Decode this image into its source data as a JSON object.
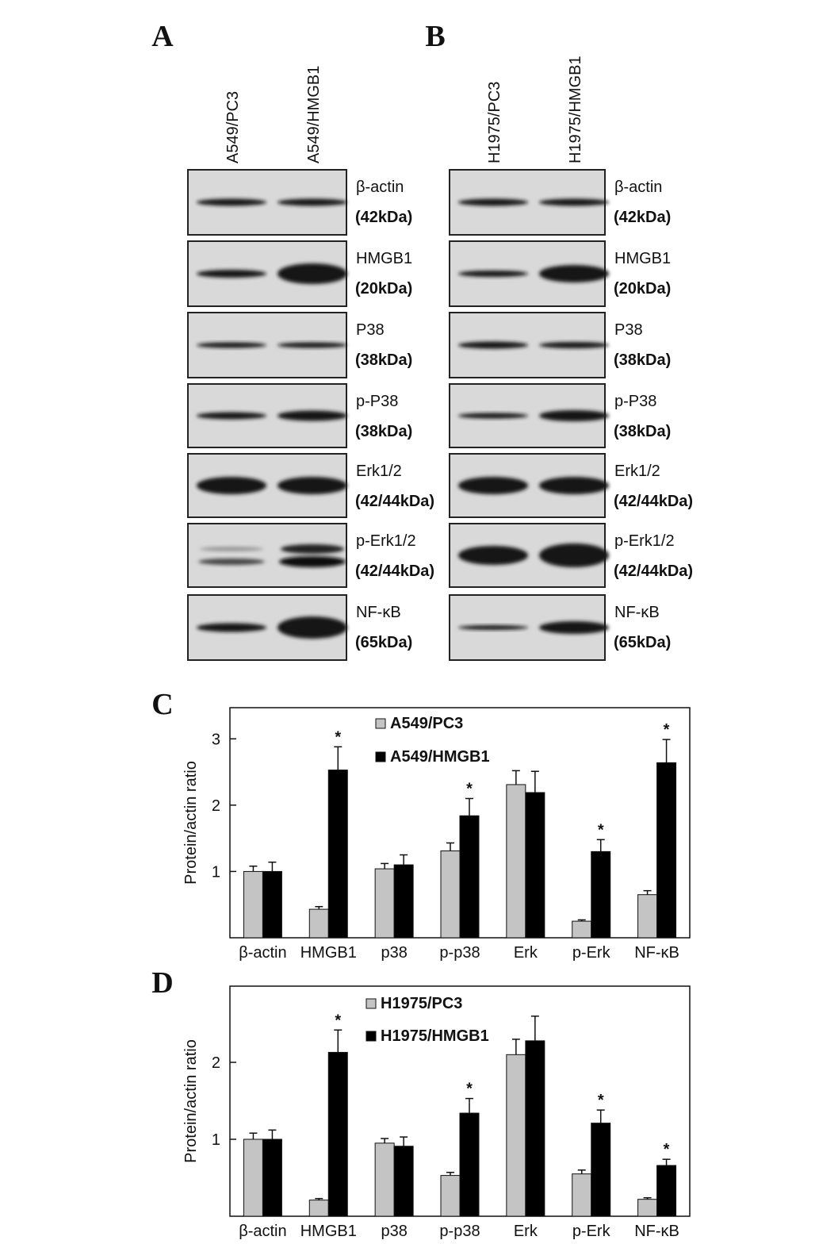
{
  "panels": [
    {
      "letter": "A",
      "lanes": [
        "A549/PC3",
        "A549/HMGB1"
      ],
      "blots": [
        {
          "protein": "β-actin",
          "size": "(42kDa)"
        },
        {
          "protein": "HMGB1",
          "size": "(20kDa)"
        },
        {
          "protein": "P38",
          "size": "(38kDa)"
        },
        {
          "protein": "p-P38",
          "size": "(38kDa)"
        },
        {
          "protein": "Erk1/2",
          "size": "(42/44kDa)"
        },
        {
          "protein": "p-Erk1/2",
          "size": "(42/44kDa)"
        },
        {
          "protein": "NF-κB",
          "size": "(65kDa)"
        }
      ]
    },
    {
      "letter": "B",
      "lanes": [
        "H1975/PC3",
        "H1975/HMGB1"
      ],
      "blots": [
        {
          "protein": "β-actin",
          "size": "(42kDa)"
        },
        {
          "protein": "HMGB1",
          "size": "(20kDa)"
        },
        {
          "protein": "P38",
          "size": "(38kDa)"
        },
        {
          "protein": "p-P38",
          "size": "(38kDa)"
        },
        {
          "protein": "Erk1/2",
          "size": "(42/44kDa)"
        },
        {
          "protein": "p-Erk1/2",
          "size": "(42/44kDa)"
        },
        {
          "protein": "NF-κB",
          "size": "(65kDa)"
        }
      ]
    }
  ],
  "chart_data": [
    {
      "type": "bar",
      "letter": "C",
      "y_label": "Protein/actin ratio",
      "categories": [
        "β-actin",
        "HMGB1",
        "p38",
        "p-p38",
        "Erk",
        "p-Erk",
        "NF-κB"
      ],
      "ylim": [
        0,
        3.47
      ],
      "yticks": [
        1,
        2,
        3
      ],
      "series": [
        {
          "name": "A549/PC3",
          "color": "#c4c4c4",
          "values": [
            1.0,
            0.43,
            1.04,
            1.31,
            2.31,
            0.25,
            0.65
          ],
          "errors": [
            0.08,
            0.04,
            0.08,
            0.12,
            0.21,
            0.02,
            0.06
          ]
        },
        {
          "name": "A549/HMGB1",
          "color": "#000000",
          "values": [
            1.0,
            2.53,
            1.1,
            1.84,
            2.19,
            1.3,
            2.64
          ],
          "errors": [
            0.14,
            0.35,
            0.15,
            0.26,
            0.32,
            0.18,
            0.35
          ],
          "markers": [
            null,
            "*",
            null,
            "*",
            null,
            "*",
            "*"
          ]
        }
      ]
    },
    {
      "type": "bar",
      "letter": "D",
      "y_label": "Protein/actin ratio",
      "categories": [
        "β-actin",
        "HMGB1",
        "p38",
        "p-p38",
        "Erk",
        "p-Erk",
        "NF-κB"
      ],
      "ylim": [
        0,
        2.99
      ],
      "yticks": [
        1,
        2
      ],
      "series": [
        {
          "name": "H1975/PC3",
          "color": "#c4c4c4",
          "values": [
            1.0,
            0.21,
            0.95,
            0.53,
            2.1,
            0.55,
            0.22
          ],
          "errors": [
            0.08,
            0.02,
            0.06,
            0.04,
            0.2,
            0.05,
            0.02
          ]
        },
        {
          "name": "H1975/HMGB1",
          "color": "#000000",
          "values": [
            1.0,
            2.13,
            0.91,
            1.34,
            2.28,
            1.21,
            0.66
          ],
          "errors": [
            0.12,
            0.29,
            0.12,
            0.19,
            0.32,
            0.17,
            0.08
          ],
          "markers": [
            null,
            "*",
            null,
            "*",
            null,
            "*",
            "*"
          ]
        }
      ]
    }
  ]
}
